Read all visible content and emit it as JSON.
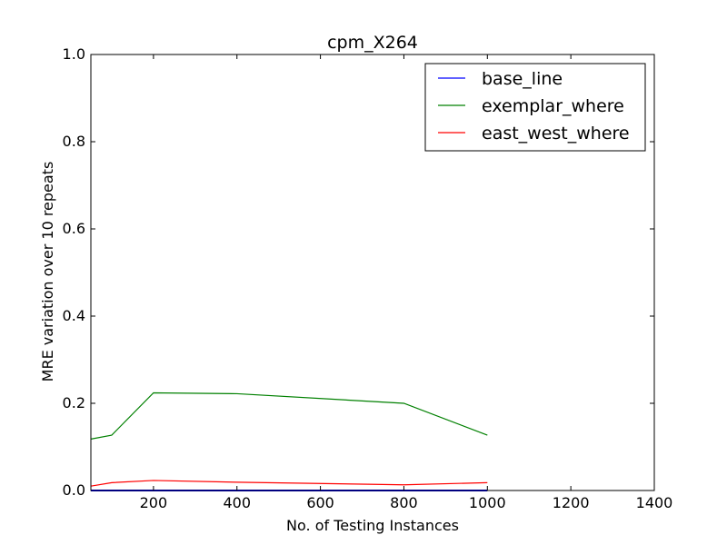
{
  "chart_data": {
    "type": "line",
    "title": "cpm_X264",
    "xlabel": "No. of Testing Instances",
    "ylabel": "MRE variation over 10 repeats",
    "xlim": [
      50,
      1400
    ],
    "ylim": [
      0.0,
      1.0
    ],
    "xticks": [
      200,
      400,
      600,
      800,
      1000,
      1200,
      1400
    ],
    "xtick_labels": [
      "200",
      "400",
      "600",
      "800",
      "1000",
      "1200",
      "1400"
    ],
    "yticks": [
      0.0,
      0.2,
      0.4,
      0.6,
      0.8,
      1.0
    ],
    "ytick_labels": [
      "0.0",
      "0.2",
      "0.4",
      "0.6",
      "0.8",
      "1.0"
    ],
    "grid": false,
    "legend_position": "top-right",
    "x": [
      50,
      100,
      200,
      400,
      800,
      1000
    ],
    "series": [
      {
        "name": "base_line",
        "color": "#0000ff",
        "values": [
          0.0,
          0.0,
          0.0,
          0.0,
          0.0,
          0.0
        ]
      },
      {
        "name": "exemplar_where",
        "color": "#008000",
        "values": [
          0.118,
          0.127,
          0.224,
          0.222,
          0.2,
          0.127
        ]
      },
      {
        "name": "east_west_where",
        "color": "#ff0000",
        "values": [
          0.01,
          0.018,
          0.023,
          0.019,
          0.013,
          0.018
        ]
      }
    ]
  }
}
